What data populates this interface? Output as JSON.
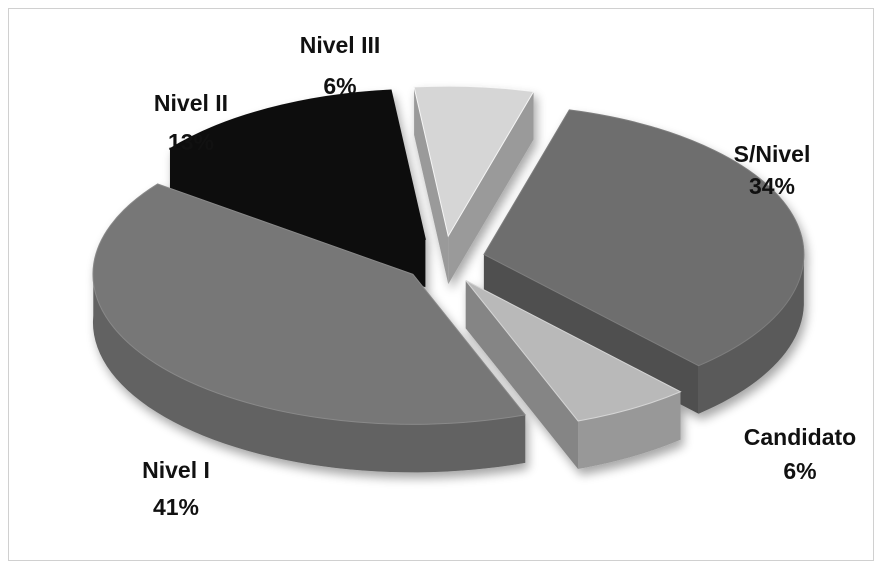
{
  "chart_data": {
    "type": "pie",
    "style": "3d-exploded",
    "title": "",
    "unit": "%",
    "slices": [
      {
        "label": "S/Nivel",
        "value": 34,
        "value_label": "34%",
        "color": "#6e6e6e"
      },
      {
        "label": "Candidato",
        "value": 6,
        "value_label": "6%",
        "color": "#b9b9b9"
      },
      {
        "label": "Nivel I",
        "value": 41,
        "value_label": "41%",
        "color": "#777777"
      },
      {
        "label": "Nivel II",
        "value": 13,
        "value_label": "13%",
        "color": "#0d0d0d"
      },
      {
        "label": "Nivel III",
        "value": 6,
        "value_label": "6%",
        "color": "#d6d6d6"
      }
    ]
  }
}
